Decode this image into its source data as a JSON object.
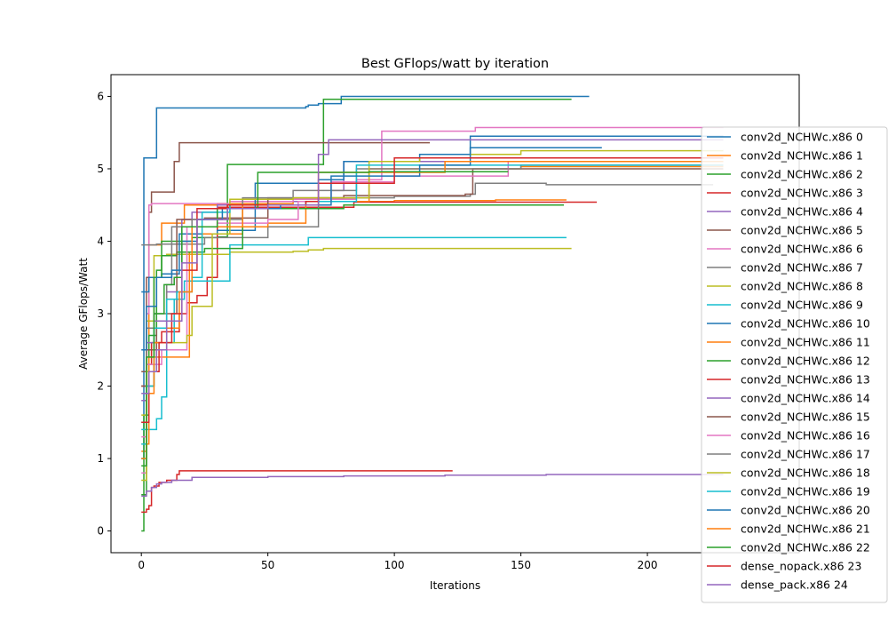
{
  "chart_data": {
    "type": "line",
    "title": "Best GFlops/watt by iteration",
    "xlabel": "Iterations",
    "ylabel": "Average GFlops/Watt",
    "xlim": [
      -12,
      260
    ],
    "ylim": [
      -0.3,
      6.3
    ],
    "xticks": [
      0,
      50,
      100,
      150,
      200
    ],
    "yticks": [
      0,
      1,
      2,
      3,
      4,
      5,
      6
    ],
    "grid": false,
    "legend_position": "right",
    "series": [
      {
        "name": "conv2d_NCHWc.x86 0",
        "color": "#1f77b4",
        "points": [
          [
            0,
            1.0
          ],
          [
            1,
            5.15
          ],
          [
            5,
            5.15
          ],
          [
            6,
            5.84
          ],
          [
            64,
            5.84
          ],
          [
            65,
            5.86
          ],
          [
            66,
            5.88
          ],
          [
            70,
            5.9
          ],
          [
            79,
            6.0
          ],
          [
            177,
            6.0
          ]
        ]
      },
      {
        "name": "conv2d_NCHWc.x86 1",
        "color": "#ff7f0e",
        "points": [
          [
            0,
            1.1
          ],
          [
            2,
            2.0
          ],
          [
            3,
            3.95
          ],
          [
            6,
            3.95
          ],
          [
            8,
            4.25
          ],
          [
            15,
            4.25
          ],
          [
            17,
            4.5
          ],
          [
            30,
            4.52
          ],
          [
            60,
            4.55
          ],
          [
            100,
            4.56
          ],
          [
            140,
            4.57
          ],
          [
            168,
            4.57
          ]
        ]
      },
      {
        "name": "conv2d_NCHWc.x86 2",
        "color": "#2ca02c",
        "points": [
          [
            0,
            0.0
          ],
          [
            1,
            1.6
          ],
          [
            3,
            2.7
          ],
          [
            6,
            3.6
          ],
          [
            8,
            4.0
          ],
          [
            20,
            4.05
          ],
          [
            30,
            4.06
          ],
          [
            34,
            5.06
          ],
          [
            70,
            5.06
          ],
          [
            72,
            5.96
          ],
          [
            170,
            5.96
          ]
        ]
      },
      {
        "name": "conv2d_NCHWc.x86 3",
        "color": "#d62728",
        "points": [
          [
            0,
            2.0
          ],
          [
            2,
            2.3
          ],
          [
            4,
            2.6
          ],
          [
            8,
            2.75
          ],
          [
            15,
            3.0
          ],
          [
            18,
            3.15
          ],
          [
            22,
            3.25
          ],
          [
            26,
            3.5
          ],
          [
            30,
            4.47
          ],
          [
            82,
            4.47
          ],
          [
            84,
            4.54
          ],
          [
            180,
            4.54
          ]
        ]
      },
      {
        "name": "conv2d_NCHWc.x86 4",
        "color": "#9467bd",
        "points": [
          [
            0,
            1.8
          ],
          [
            2,
            2.6
          ],
          [
            5,
            2.9
          ],
          [
            10,
            3.3
          ],
          [
            16,
            4.3
          ],
          [
            20,
            4.4
          ],
          [
            30,
            4.5
          ],
          [
            50,
            4.55
          ],
          [
            75,
            4.7
          ],
          [
            80,
            5.1
          ],
          [
            230,
            5.1
          ]
        ]
      },
      {
        "name": "conv2d_NCHWc.x86 5",
        "color": "#8c564b",
        "points": [
          [
            0,
            2.0
          ],
          [
            2,
            3.5
          ],
          [
            3,
            4.4
          ],
          [
            4,
            4.68
          ],
          [
            12,
            4.68
          ],
          [
            13,
            5.1
          ],
          [
            15,
            5.36
          ],
          [
            114,
            5.36
          ]
        ]
      },
      {
        "name": "conv2d_NCHWc.x86 6",
        "color": "#e377c2",
        "points": [
          [
            0,
            0.8
          ],
          [
            2,
            3.0
          ],
          [
            3,
            4.5
          ],
          [
            4,
            4.52
          ],
          [
            35,
            4.55
          ],
          [
            60,
            4.58
          ],
          [
            85,
            4.85
          ],
          [
            95,
            5.52
          ],
          [
            130,
            5.52
          ],
          [
            132,
            5.57
          ],
          [
            230,
            5.57
          ]
        ]
      },
      {
        "name": "conv2d_NCHWc.x86 7",
        "color": "#7f7f7f",
        "points": [
          [
            0,
            3.95
          ],
          [
            6,
            3.96
          ],
          [
            25,
            4.05
          ],
          [
            50,
            4.2
          ],
          [
            70,
            4.6
          ],
          [
            100,
            4.62
          ],
          [
            130,
            4.65
          ],
          [
            132,
            4.8
          ],
          [
            160,
            4.78
          ],
          [
            226,
            4.78
          ]
        ]
      },
      {
        "name": "conv2d_NCHWc.x86 8",
        "color": "#bcbd22",
        "points": [
          [
            0,
            1.6
          ],
          [
            2,
            2.9
          ],
          [
            5,
            3.8
          ],
          [
            10,
            3.82
          ],
          [
            35,
            3.85
          ],
          [
            60,
            3.86
          ],
          [
            66,
            3.88
          ],
          [
            72,
            3.9
          ],
          [
            170,
            3.9
          ]
        ]
      },
      {
        "name": "conv2d_NCHWc.x86 9",
        "color": "#17becf",
        "points": [
          [
            0,
            1.4
          ],
          [
            3,
            1.4
          ],
          [
            6,
            1.55
          ],
          [
            8,
            1.85
          ],
          [
            10,
            2.6
          ],
          [
            13,
            3.2
          ],
          [
            17,
            3.45
          ],
          [
            34,
            3.45
          ],
          [
            35,
            3.95
          ],
          [
            60,
            3.95
          ],
          [
            66,
            4.05
          ],
          [
            168,
            4.05
          ]
        ]
      },
      {
        "name": "conv2d_NCHWc.x86 10",
        "color": "#1f77b4",
        "points": [
          [
            0,
            3.3
          ],
          [
            3,
            3.5
          ],
          [
            8,
            3.55
          ],
          [
            15,
            4.1
          ],
          [
            30,
            4.15
          ],
          [
            45,
            4.8
          ],
          [
            70,
            4.85
          ],
          [
            80,
            5.1
          ],
          [
            110,
            5.2
          ],
          [
            130,
            5.29
          ],
          [
            182,
            5.29
          ]
        ]
      },
      {
        "name": "conv2d_NCHWc.x86 11",
        "color": "#ff7f0e",
        "points": [
          [
            0,
            1.2
          ],
          [
            3,
            2.4
          ],
          [
            18,
            2.4
          ],
          [
            19,
            3.85
          ],
          [
            24,
            4.1
          ],
          [
            40,
            4.2
          ],
          [
            50,
            4.25
          ],
          [
            65,
            4.55
          ],
          [
            90,
            5.0
          ],
          [
            150,
            5.03
          ],
          [
            230,
            5.03
          ]
        ]
      },
      {
        "name": "conv2d_NCHWc.x86 12",
        "color": "#2ca02c",
        "points": [
          [
            0,
            0.5
          ],
          [
            2,
            2.0
          ],
          [
            5,
            3.5
          ],
          [
            8,
            3.8
          ],
          [
            14,
            3.85
          ],
          [
            25,
            3.9
          ],
          [
            40,
            4.45
          ],
          [
            80,
            4.5
          ],
          [
            167,
            4.5
          ]
        ]
      },
      {
        "name": "conv2d_NCHWc.x86 13",
        "color": "#d62728",
        "points": [
          [
            0,
            0.26
          ],
          [
            2,
            0.3
          ],
          [
            3,
            0.35
          ],
          [
            4,
            0.6
          ],
          [
            5,
            0.62
          ],
          [
            7,
            0.67
          ],
          [
            10,
            0.7
          ],
          [
            14,
            0.78
          ],
          [
            15,
            0.83
          ],
          [
            123,
            0.83
          ]
        ]
      },
      {
        "name": "conv2d_NCHWc.x86 14",
        "color": "#9467bd",
        "points": [
          [
            0,
            0.48
          ],
          [
            2,
            0.55
          ],
          [
            4,
            0.6
          ],
          [
            6,
            0.65
          ],
          [
            8,
            0.67
          ],
          [
            12,
            0.7
          ],
          [
            20,
            0.74
          ],
          [
            50,
            0.75
          ],
          [
            80,
            0.76
          ],
          [
            120,
            0.77
          ],
          [
            160,
            0.78
          ],
          [
            230,
            0.78
          ]
        ]
      },
      {
        "name": "conv2d_NCHWc.x86 15",
        "color": "#8c564b",
        "points": [
          [
            0,
            2.2
          ],
          [
            2,
            2.5
          ],
          [
            6,
            2.8
          ],
          [
            10,
            3.0
          ],
          [
            14,
            4.3
          ],
          [
            25,
            4.32
          ],
          [
            50,
            4.6
          ],
          [
            80,
            4.63
          ],
          [
            128,
            4.65
          ],
          [
            131,
            5.0
          ],
          [
            230,
            5.0
          ]
        ]
      },
      {
        "name": "conv2d_NCHWc.x86 16",
        "color": "#e377c2",
        "points": [
          [
            0,
            1.3
          ],
          [
            2,
            2.3
          ],
          [
            8,
            2.5
          ],
          [
            15,
            2.5
          ],
          [
            18,
            4.2
          ],
          [
            30,
            4.25
          ],
          [
            50,
            4.3
          ],
          [
            62,
            4.55
          ],
          [
            75,
            4.82
          ],
          [
            100,
            4.9
          ],
          [
            145,
            5.1
          ],
          [
            230,
            5.1
          ]
        ]
      },
      {
        "name": "conv2d_NCHWc.x86 17",
        "color": "#7f7f7f",
        "points": [
          [
            0,
            1.5
          ],
          [
            2,
            2.8
          ],
          [
            5,
            3.0
          ],
          [
            10,
            3.4
          ],
          [
            12,
            4.2
          ],
          [
            20,
            4.3
          ],
          [
            40,
            4.6
          ],
          [
            60,
            4.7
          ],
          [
            85,
            5.0
          ],
          [
            150,
            5.05
          ],
          [
            230,
            5.05
          ]
        ]
      },
      {
        "name": "conv2d_NCHWc.x86 18",
        "color": "#bcbd22",
        "points": [
          [
            0,
            0.7
          ],
          [
            2,
            2.2
          ],
          [
            6,
            2.5
          ],
          [
            10,
            2.6
          ],
          [
            18,
            2.7
          ],
          [
            20,
            3.1
          ],
          [
            28,
            4.1
          ],
          [
            35,
            4.58
          ],
          [
            60,
            4.6
          ],
          [
            90,
            5.1
          ],
          [
            110,
            5.15
          ],
          [
            130,
            5.2
          ],
          [
            150,
            5.25
          ],
          [
            230,
            5.25
          ]
        ]
      },
      {
        "name": "conv2d_NCHWc.x86 19",
        "color": "#17becf",
        "points": [
          [
            0,
            1.2
          ],
          [
            2,
            2.0
          ],
          [
            5,
            2.8
          ],
          [
            10,
            3.2
          ],
          [
            14,
            3.3
          ],
          [
            20,
            3.5
          ],
          [
            24,
            4.4
          ],
          [
            35,
            4.5
          ],
          [
            65,
            4.55
          ],
          [
            85,
            5.05
          ],
          [
            230,
            5.05
          ]
        ]
      },
      {
        "name": "conv2d_NCHWc.x86 20",
        "color": "#1f77b4",
        "points": [
          [
            0,
            2.5
          ],
          [
            2,
            3.1
          ],
          [
            6,
            3.5
          ],
          [
            12,
            3.6
          ],
          [
            16,
            4.0
          ],
          [
            22,
            4.3
          ],
          [
            32,
            4.45
          ],
          [
            55,
            4.5
          ],
          [
            75,
            4.9
          ],
          [
            110,
            5.05
          ],
          [
            130,
            5.45
          ],
          [
            230,
            5.45
          ]
        ]
      },
      {
        "name": "conv2d_NCHWc.x86 21",
        "color": "#ff7f0e",
        "points": [
          [
            0,
            1.0
          ],
          [
            2,
            1.9
          ],
          [
            5,
            2.6
          ],
          [
            10,
            2.8
          ],
          [
            15,
            3.3
          ],
          [
            20,
            4.2
          ],
          [
            40,
            4.5
          ],
          [
            70,
            4.95
          ],
          [
            120,
            5.1
          ],
          [
            230,
            5.1
          ]
        ]
      },
      {
        "name": "conv2d_NCHWc.x86 22",
        "color": "#2ca02c",
        "points": [
          [
            0,
            0.9
          ],
          [
            2,
            2.4
          ],
          [
            5,
            3.0
          ],
          [
            9,
            3.4
          ],
          [
            13,
            3.5
          ],
          [
            16,
            4.2
          ],
          [
            30,
            4.45
          ],
          [
            46,
            4.95
          ],
          [
            90,
            4.96
          ],
          [
            145,
            4.96
          ]
        ]
      },
      {
        "name": "dense_nopack.x86 23",
        "color": "#d62728",
        "points": [
          [
            0,
            1.5
          ],
          [
            3,
            2.2
          ],
          [
            7,
            2.6
          ],
          [
            12,
            3.0
          ],
          [
            16,
            3.6
          ],
          [
            22,
            4.45
          ],
          [
            34,
            4.5
          ],
          [
            65,
            4.55
          ],
          [
            70,
            4.8
          ],
          [
            100,
            5.15
          ],
          [
            230,
            5.15
          ]
        ]
      },
      {
        "name": "dense_pack.x86 24",
        "color": "#9467bd",
        "points": [
          [
            0,
            1.9
          ],
          [
            3,
            2.2
          ],
          [
            6,
            2.5
          ],
          [
            10,
            2.9
          ],
          [
            16,
            3.7
          ],
          [
            22,
            4.3
          ],
          [
            34,
            4.45
          ],
          [
            50,
            4.5
          ],
          [
            70,
            5.2
          ],
          [
            74,
            5.4
          ],
          [
            230,
            5.4
          ]
        ]
      }
    ]
  }
}
